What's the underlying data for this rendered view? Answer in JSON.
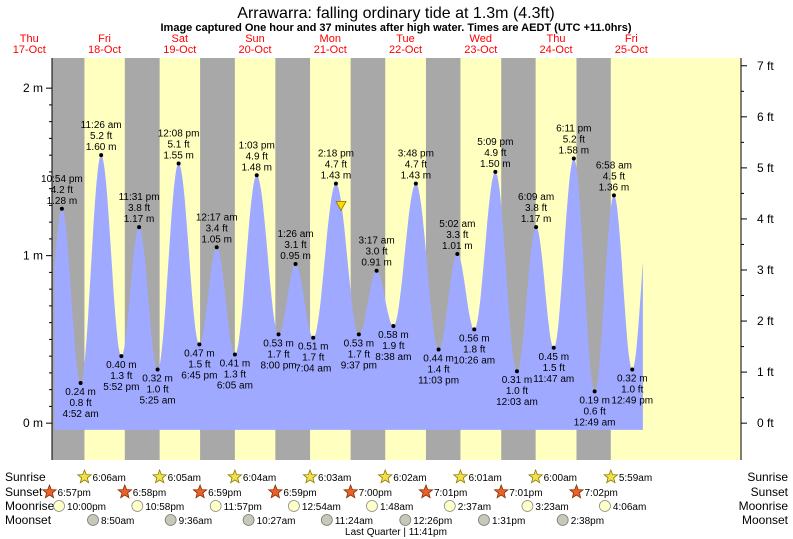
{
  "title": "Arrawarra: falling  ordinary tide at 1.3m (4.3ft)",
  "subtitle": "Image captured One hour and 37 minutes after high water. Times are AEDT (UTC +11.0hrs)",
  "colors": {
    "day": "#ffffc0",
    "night": "#a8a8a8",
    "water": "#9fa9ff",
    "date_text": "#ff0000",
    "text": "#000000",
    "marker": "#ffd700"
  },
  "days": [
    {
      "dow": "Thu",
      "date": "17-Oct"
    },
    {
      "dow": "Fri",
      "date": "18-Oct"
    },
    {
      "dow": "Sat",
      "date": "19-Oct"
    },
    {
      "dow": "Sun",
      "date": "20-Oct"
    },
    {
      "dow": "Mon",
      "date": "21-Oct"
    },
    {
      "dow": "Tue",
      "date": "22-Oct"
    },
    {
      "dow": "Wed",
      "date": "23-Oct"
    },
    {
      "dow": "Thu",
      "date": "24-Oct"
    },
    {
      "dow": "Fri",
      "date": "25-Oct"
    }
  ],
  "row_labels": {
    "sunrise": "Sunrise",
    "sunset": "Sunset",
    "moonrise": "Moonrise",
    "moonset": "Moonset"
  },
  "moon_phase": "Last Quarter | 11:41pm",
  "chart_data": {
    "type": "area",
    "x_unit": "hours after 17-Oct 00:00 AEDT",
    "y_axis_left": {
      "unit": "m",
      "ticks": [
        {
          "v": 0,
          "label": "0 m"
        },
        {
          "v": 1,
          "label": "1 m"
        },
        {
          "v": 2,
          "label": "2 m"
        }
      ],
      "range": [
        -0.22,
        2.18
      ]
    },
    "y_axis_right": {
      "unit": "ft",
      "ticks": [
        "0 ft",
        "1 ft",
        "2 ft",
        "3 ft",
        "4 ft",
        "5 ft",
        "6 ft",
        "7 ft"
      ]
    },
    "x_range": [
      19.75,
      239.5
    ],
    "tides": [
      {
        "t": 22.9,
        "h": 1.28,
        "type": "high",
        "time": "10:54 pm",
        "ft": "4.2 ft",
        "m": "1.28 m"
      },
      {
        "t": 28.87,
        "h": 0.24,
        "type": "low",
        "time": "4:52 am",
        "ft": "0.8 ft",
        "m": "0.24 m"
      },
      {
        "t": 35.43,
        "h": 1.6,
        "type": "high",
        "time": "11:26 am",
        "ft": "5.2 ft",
        "m": "1.60 m"
      },
      {
        "t": 41.87,
        "h": 0.4,
        "type": "low",
        "time": "5:52 pm",
        "ft": "1.3 ft",
        "m": "0.40 m"
      },
      {
        "t": 47.52,
        "h": 1.17,
        "type": "high",
        "time": "11:31 pm",
        "ft": "3.8 ft",
        "m": "1.17 m"
      },
      {
        "t": 53.42,
        "h": 0.32,
        "type": "low",
        "time": "5:25 am",
        "ft": "1.0 ft",
        "m": "0.32 m"
      },
      {
        "t": 60.13,
        "h": 1.55,
        "type": "high",
        "time": "12:08 pm",
        "ft": "5.1 ft",
        "m": "1.55 m"
      },
      {
        "t": 66.75,
        "h": 0.47,
        "type": "low",
        "time": "6:45 pm",
        "ft": "1.5 ft",
        "m": "0.47 m"
      },
      {
        "t": 72.28,
        "h": 1.05,
        "type": "high",
        "time": "12:17 am",
        "ft": "3.4 ft",
        "m": "1.05 m"
      },
      {
        "t": 78.08,
        "h": 0.41,
        "type": "low",
        "time": "6:05 am",
        "ft": "1.3 ft",
        "m": "0.41 m"
      },
      {
        "t": 85.05,
        "h": 1.48,
        "type": "high",
        "time": "1:03 pm",
        "ft": "4.9 ft",
        "m": "1.48 m"
      },
      {
        "t": 92.0,
        "h": 0.53,
        "type": "low",
        "time": "8:00 pm",
        "ft": "1.7 ft",
        "m": "0.53 m"
      },
      {
        "t": 97.43,
        "h": 0.95,
        "type": "high",
        "time": "1:26 am",
        "ft": "3.1 ft",
        "m": "0.95 m"
      },
      {
        "t": 103.07,
        "h": 0.51,
        "type": "low",
        "time": "7:04 am",
        "ft": "1.7 ft",
        "m": "0.51 m"
      },
      {
        "t": 110.3,
        "h": 1.43,
        "type": "high",
        "time": "2:18 pm",
        "ft": "4.7 ft",
        "m": "1.43 m"
      },
      {
        "t": 117.62,
        "h": 0.53,
        "type": "low",
        "time": "9:37 pm",
        "ft": "1.7 ft",
        "m": "0.53 m"
      },
      {
        "t": 123.28,
        "h": 0.91,
        "type": "high",
        "time": "3:17 am",
        "ft": "3.0 ft",
        "m": "0.91 m"
      },
      {
        "t": 128.63,
        "h": 0.58,
        "type": "low",
        "time": "8:38 am",
        "ft": "1.9 ft",
        "m": "0.58 m"
      },
      {
        "t": 135.8,
        "h": 1.43,
        "type": "high",
        "time": "3:48 pm",
        "ft": "4.7 ft",
        "m": "1.43 m"
      },
      {
        "t": 143.05,
        "h": 0.44,
        "type": "low",
        "time": "11:03 pm",
        "ft": "1.4 ft",
        "m": "0.44 m"
      },
      {
        "t": 149.03,
        "h": 1.01,
        "type": "high",
        "time": "5:02 am",
        "ft": "3.3 ft",
        "m": "1.01 m"
      },
      {
        "t": 154.43,
        "h": 0.56,
        "type": "low",
        "time": "10:26 am",
        "ft": "1.8 ft",
        "m": "0.56 m"
      },
      {
        "t": 161.15,
        "h": 1.5,
        "type": "high",
        "time": "5:09 pm",
        "ft": "4.9 ft",
        "m": "1.50 m"
      },
      {
        "t": 168.05,
        "h": 0.31,
        "type": "low",
        "time": "12:03 am",
        "ft": "1.0 ft",
        "m": "0.31 m"
      },
      {
        "t": 174.15,
        "h": 1.17,
        "type": "high",
        "time": "6:09 am",
        "ft": "3.8 ft",
        "m": "1.17 m"
      },
      {
        "t": 179.78,
        "h": 0.45,
        "type": "low",
        "time": "11:47 am",
        "ft": "1.5 ft",
        "m": "0.45 m"
      },
      {
        "t": 186.18,
        "h": 1.58,
        "type": "high",
        "time": "6:11 pm",
        "ft": "5.2 ft",
        "m": "1.58 m"
      },
      {
        "t": 192.82,
        "h": 0.19,
        "type": "low",
        "time": "12:49 am",
        "ft": "0.6 ft",
        "m": "0.19 m"
      },
      {
        "t": 198.97,
        "h": 1.36,
        "type": "high",
        "time": "6:58 am",
        "ft": "4.5 ft",
        "m": "1.36 m"
      },
      {
        "t": 204.82,
        "h": 0.32,
        "type": "low",
        "time": "12:49 pm",
        "ft": "1.0 ft",
        "m": "0.32 m"
      }
    ],
    "current": {
      "t": 111.92,
      "h": 1.3
    },
    "sunrise": [
      {
        "t": 30.1,
        "label": "6:06am"
      },
      {
        "t": 54.08,
        "label": "6:05am"
      },
      {
        "t": 78.07,
        "label": "6:04am"
      },
      {
        "t": 102.05,
        "label": "6:03am"
      },
      {
        "t": 126.03,
        "label": "6:02am"
      },
      {
        "t": 150.02,
        "label": "6:01am"
      },
      {
        "t": 174.0,
        "label": "6:00am"
      },
      {
        "t": 197.98,
        "label": "5:59am"
      }
    ],
    "sunset": [
      {
        "t": 18.95,
        "label": "6:57pm"
      },
      {
        "t": 42.97,
        "label": "6:58pm"
      },
      {
        "t": 66.98,
        "label": "6:59pm"
      },
      {
        "t": 90.98,
        "label": "6:59pm"
      },
      {
        "t": 115.0,
        "label": "7:00pm"
      },
      {
        "t": 139.02,
        "label": "7:01pm"
      },
      {
        "t": 163.02,
        "label": "7:01pm"
      },
      {
        "t": 187.03,
        "label": "7:02pm"
      }
    ],
    "moonrise": [
      {
        "t": 22.0,
        "label": "10:00pm"
      },
      {
        "t": 46.97,
        "label": "10:58pm"
      },
      {
        "t": 71.95,
        "label": "11:57pm"
      },
      {
        "t": 96.9,
        "label": "12:54am"
      },
      {
        "t": 121.8,
        "label": "1:48am"
      },
      {
        "t": 146.62,
        "label": "2:37am"
      },
      {
        "t": 171.38,
        "label": "3:23am"
      },
      {
        "t": 196.1,
        "label": "4:06am"
      }
    ],
    "moonset": [
      {
        "t": 32.83,
        "label": "8:50am"
      },
      {
        "t": 57.6,
        "label": "9:36am"
      },
      {
        "t": 82.45,
        "label": "10:27am"
      },
      {
        "t": 107.4,
        "label": "11:24am"
      },
      {
        "t": 132.43,
        "label": "12:26pm"
      },
      {
        "t": 157.52,
        "label": "1:31pm"
      },
      {
        "t": 182.63,
        "label": "2:38pm"
      }
    ]
  }
}
